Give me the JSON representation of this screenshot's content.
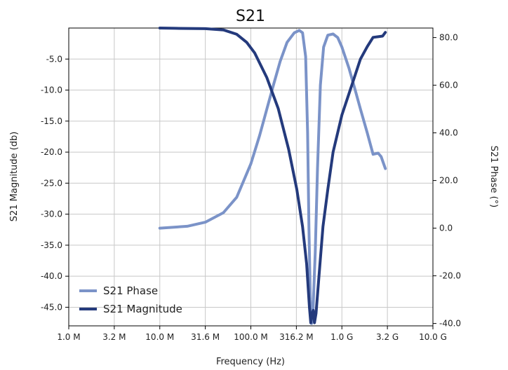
{
  "chart_data": {
    "type": "line",
    "title": "S21",
    "xlabel": "Frequency (Hz)",
    "ylabel_left": "S21 Magnitude (db)",
    "ylabel_right": "S21 Phase (°)",
    "x_scale": "log",
    "xlim": [
      1000000,
      10000000000
    ],
    "ylim_left": [
      -48,
      0
    ],
    "ylim_right": [
      -41,
      84
    ],
    "x_ticks": [
      {
        "value": 1000000,
        "label": "1.0 M"
      },
      {
        "value": 3162278,
        "label": "3.2 M"
      },
      {
        "value": 10000000,
        "label": "10.0 M"
      },
      {
        "value": 31622777,
        "label": "31.6 M"
      },
      {
        "value": 100000000,
        "label": "100.0 M"
      },
      {
        "value": 316227766,
        "label": "316.2 M"
      },
      {
        "value": 1000000000,
        "label": "1.0 G"
      },
      {
        "value": 3162277660,
        "label": "3.2 G"
      },
      {
        "value": 10000000000,
        "label": "10.0 G"
      }
    ],
    "y_ticks_left": [
      {
        "value": -5,
        "label": "-5.0"
      },
      {
        "value": -10,
        "label": "-10.0"
      },
      {
        "value": -15,
        "label": "-15.0"
      },
      {
        "value": -20,
        "label": "-20.0"
      },
      {
        "value": -25,
        "label": "-25.0"
      },
      {
        "value": -30,
        "label": "-30.0"
      },
      {
        "value": -35,
        "label": "-35.0"
      },
      {
        "value": -40,
        "label": "-40.0"
      },
      {
        "value": -45,
        "label": "-45.0"
      }
    ],
    "y_ticks_right": [
      {
        "value": 80,
        "label": "80.0"
      },
      {
        "value": 60,
        "label": "60.0"
      },
      {
        "value": 40,
        "label": "40.0"
      },
      {
        "value": 20,
        "label": "20.0"
      },
      {
        "value": 0,
        "label": "0.0"
      },
      {
        "value": -20,
        "label": "-20.0"
      },
      {
        "value": -40,
        "label": "-40.0"
      }
    ],
    "grid": true,
    "legend_position": "bottom-left",
    "series": [
      {
        "name": "S21 Phase",
        "axis": "right",
        "color": "#7b93c8",
        "points": [
          [
            10000000,
            0
          ],
          [
            20000000,
            0.8
          ],
          [
            31600000,
            2.5
          ],
          [
            50000000,
            6.5
          ],
          [
            70000000,
            13
          ],
          [
            100000000,
            27
          ],
          [
            125000000,
            39
          ],
          [
            150000000,
            50
          ],
          [
            180000000,
            61
          ],
          [
            210000000,
            70
          ],
          [
            250000000,
            78
          ],
          [
            300000000,
            82
          ],
          [
            340000000,
            83
          ],
          [
            370000000,
            82
          ],
          [
            400000000,
            72
          ],
          [
            420000000,
            40
          ],
          [
            435000000,
            0
          ],
          [
            450000000,
            -30
          ],
          [
            465000000,
            -40
          ],
          [
            480000000,
            -36
          ],
          [
            510000000,
            -10
          ],
          [
            540000000,
            25
          ],
          [
            580000000,
            60
          ],
          [
            630000000,
            76
          ],
          [
            700000000,
            81
          ],
          [
            800000000,
            81.5
          ],
          [
            900000000,
            80
          ],
          [
            1000000000,
            76
          ],
          [
            1200000000,
            67
          ],
          [
            1400000000,
            58
          ],
          [
            1600000000,
            50
          ],
          [
            1900000000,
            40
          ],
          [
            2200000000,
            31
          ],
          [
            2500000000,
            31.5
          ],
          [
            2700000000,
            30
          ],
          [
            3000000000,
            25
          ]
        ]
      },
      {
        "name": "S21 Magnitude",
        "axis": "left",
        "color": "#243a7c",
        "points": [
          [
            10000000,
            0
          ],
          [
            15000000,
            -0.05
          ],
          [
            31600000,
            -0.1
          ],
          [
            50000000,
            -0.3
          ],
          [
            70000000,
            -1
          ],
          [
            90000000,
            -2.3
          ],
          [
            110000000,
            -4
          ],
          [
            150000000,
            -8
          ],
          [
            200000000,
            -13
          ],
          [
            260000000,
            -19.5
          ],
          [
            320000000,
            -26
          ],
          [
            370000000,
            -32
          ],
          [
            410000000,
            -38
          ],
          [
            440000000,
            -45
          ],
          [
            455000000,
            -47.5
          ],
          [
            470000000,
            -46
          ],
          [
            485000000,
            -45.5
          ],
          [
            500000000,
            -47.5
          ],
          [
            520000000,
            -46
          ],
          [
            560000000,
            -40
          ],
          [
            620000000,
            -32
          ],
          [
            700000000,
            -26
          ],
          [
            800000000,
            -20
          ],
          [
            1000000000,
            -14
          ],
          [
            1300000000,
            -9
          ],
          [
            1600000000,
            -5
          ],
          [
            1900000000,
            -3
          ],
          [
            2200000000,
            -1.5
          ],
          [
            2500000000,
            -1.4
          ],
          [
            2800000000,
            -1.3
          ],
          [
            3000000000,
            -0.7
          ]
        ]
      }
    ]
  }
}
